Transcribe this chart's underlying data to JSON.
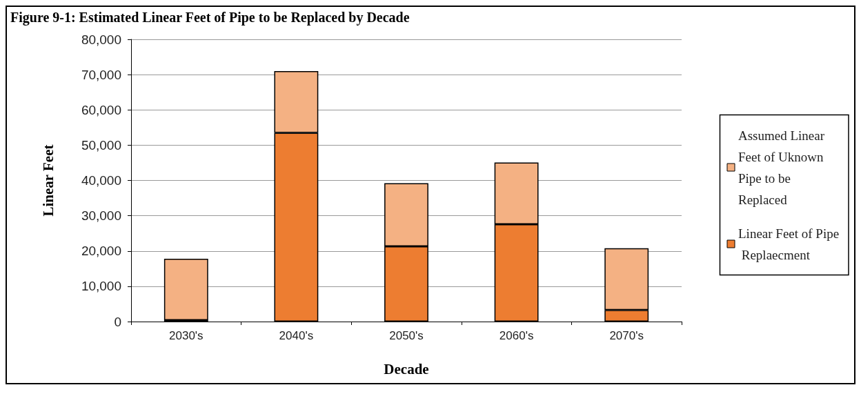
{
  "chart_data": {
    "type": "bar",
    "title": "Figure 9-1: Estimated Linear Feet of Pipe to be Replaced by Decade",
    "xlabel": "Decade",
    "ylabel": "Linear Feet",
    "categories": [
      "2030's",
      "2040's",
      "2050's",
      "2060's",
      "2070's"
    ],
    "stacked": true,
    "series": [
      {
        "name": "Linear Feet of Pipe Replaecment",
        "color": "#ed7d31",
        "values": [
          400,
          53500,
          21300,
          27600,
          3300
        ]
      },
      {
        "name": "Assumed Linear Feet of Uknown Pipe to be Replaced",
        "color": "#f4b183",
        "values": [
          17400,
          17500,
          17900,
          17500,
          17500
        ]
      }
    ],
    "ylim": [
      0,
      80000
    ],
    "yticks": [
      0,
      {
        "value": 10000,
        "label": "10,000"
      },
      {
        "value": 20000,
        "label": "20,000"
      },
      {
        "value": 30000,
        "label": "30,000"
      },
      {
        "value": 40000,
        "label": "40,000"
      },
      {
        "value": 50000,
        "label": "50,000"
      },
      {
        "value": 60000,
        "label": "60,000"
      },
      {
        "value": 70000,
        "label": "70,000"
      },
      {
        "value": 80000,
        "label": "80,000"
      }
    ],
    "grid": "y",
    "legend": "right"
  }
}
